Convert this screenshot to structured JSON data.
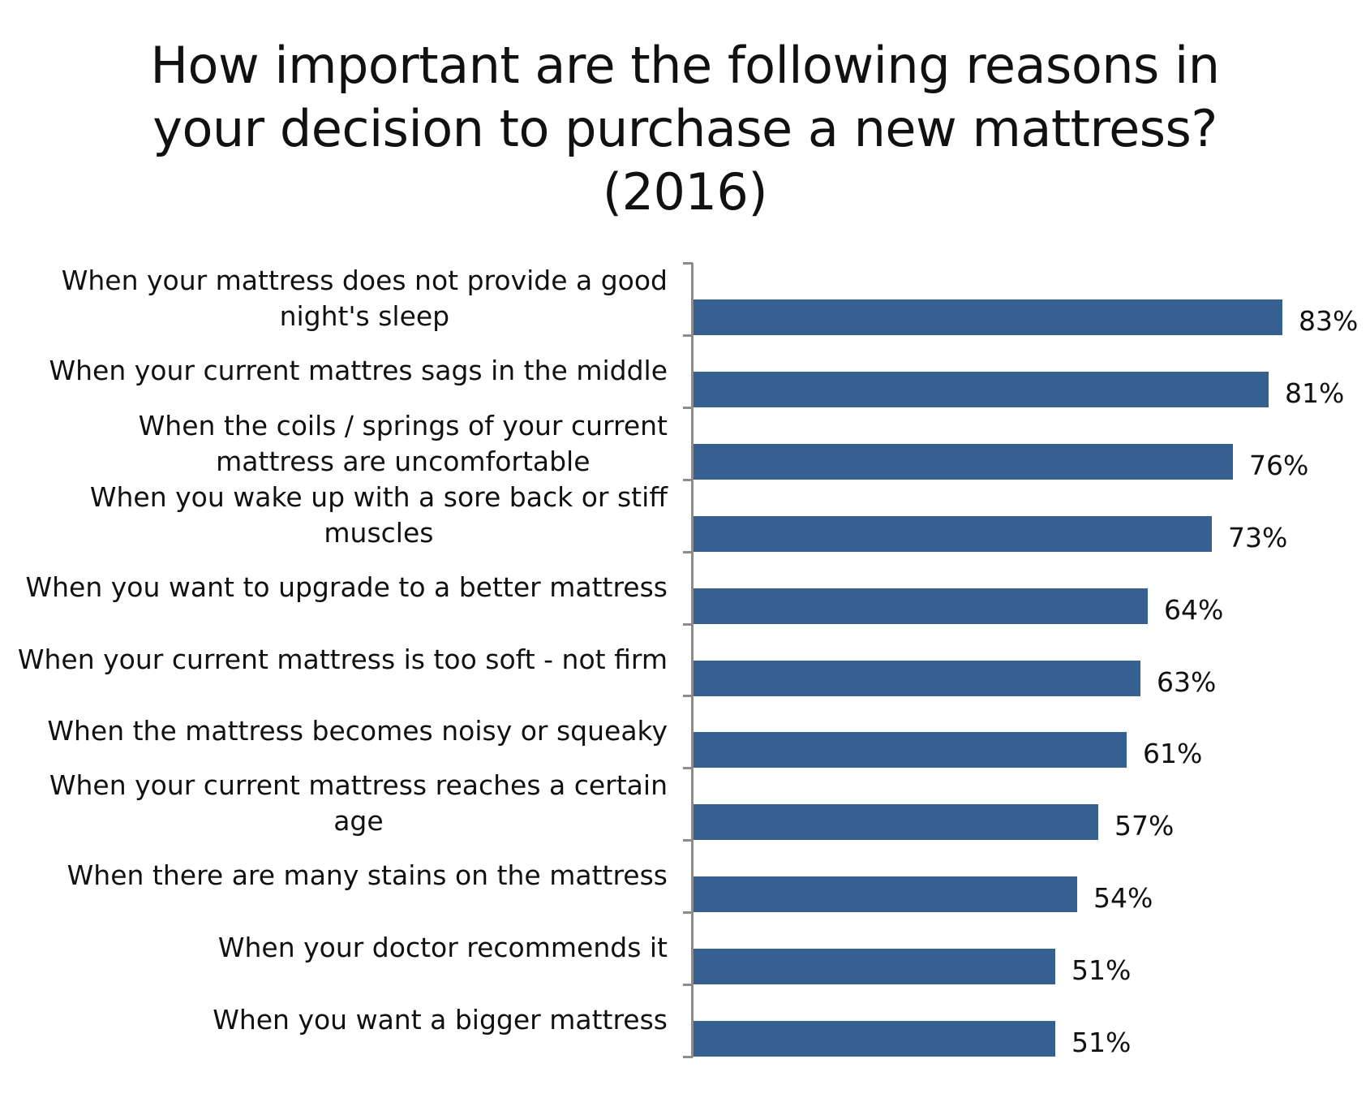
{
  "title": {
    "line1": "How important are the following reasons in",
    "line2": "your decision to purchase a new mattress?",
    "line3": "(2016)"
  },
  "colors": {
    "bar": "#36608f",
    "axis": "#8c8c8c"
  },
  "rows": [
    {
      "label_lines": [
        "When your mattress does not provide a good",
        "night's sleep"
      ],
      "value": "83%"
    },
    {
      "label_lines": [
        "When your current mattres sags in the middle"
      ],
      "value": "81%"
    },
    {
      "label_lines": [
        "When the coils / springs of your current",
        "mattress are uncomfortable"
      ],
      "value": "76%"
    },
    {
      "label_lines": [
        "When you wake up with a sore back or stiff",
        "muscles"
      ],
      "value": "73%"
    },
    {
      "label_lines": [
        "When you want to upgrade to a better mattress"
      ],
      "value": "64%"
    },
    {
      "label_lines": [
        "When your current mattress is too soft - not firm"
      ],
      "value": "63%"
    },
    {
      "label_lines": [
        "When the mattress becomes noisy or squeaky"
      ],
      "value": "61%"
    },
    {
      "label_lines": [
        "When your current mattress reaches a certain",
        "age"
      ],
      "value": "57%"
    },
    {
      "label_lines": [
        "When there are many stains on the mattress"
      ],
      "value": "54%"
    },
    {
      "label_lines": [
        "When your doctor recommends it"
      ],
      "value": "51%"
    },
    {
      "label_lines": [
        "When you want a bigger mattress"
      ],
      "value": "51%"
    }
  ],
  "chart_data": {
    "type": "bar",
    "orientation": "horizontal",
    "title": "How important are the following reasons in your decision to purchase a new mattress? (2016)",
    "categories": [
      "When your mattress does not provide a good night's sleep",
      "When your current mattres sags in the middle",
      "When the coils / springs of your current mattress are uncomfortable",
      "When you wake up with a sore back or stiff muscles",
      "When you want to upgrade to a better mattress",
      "When your current mattress is too soft - not firm",
      "When the mattress becomes noisy or squeaky",
      "When your current mattress reaches a certain age",
      "When there are many stains on the mattress",
      "When your doctor recommends it",
      "When you want a bigger mattress"
    ],
    "values": [
      83,
      81,
      76,
      73,
      64,
      63,
      61,
      57,
      54,
      51,
      51
    ],
    "unit": "%",
    "xlabel": "",
    "ylabel": "",
    "data_labels": true,
    "grid": false,
    "legend": null
  }
}
